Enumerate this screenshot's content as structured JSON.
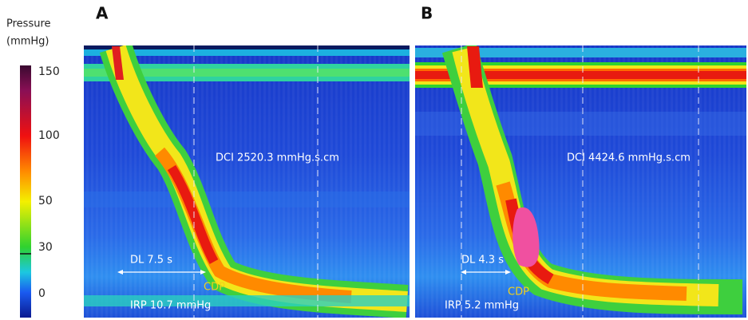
{
  "colorbar": {
    "title": [
      "Pressure",
      "(mmHg)"
    ],
    "ticks": [
      150,
      100,
      50,
      30,
      0
    ]
  },
  "panels": [
    {
      "label": "A",
      "dci": "DCI 2520.3 mmHg.s.cm",
      "dl": "DL 7.5 s",
      "cdp": "CDP",
      "irp": "IRP 10.7 mmHg"
    },
    {
      "label": "B",
      "dci": "DCI 4424.6 mmHg.s.cm",
      "dl": "DL 4.3 s",
      "cdp": "CDP",
      "irp": "IRP 5.2 mmHg"
    }
  ]
}
